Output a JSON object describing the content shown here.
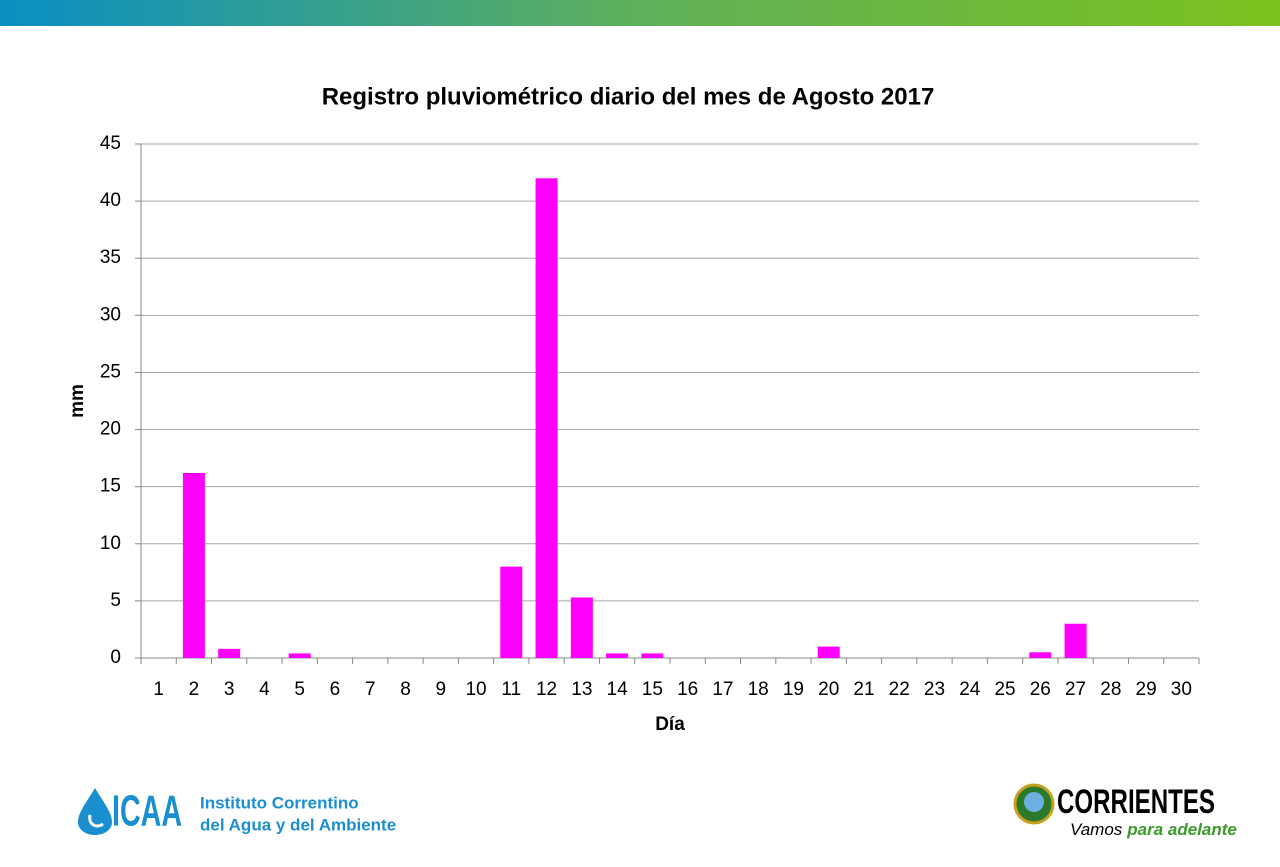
{
  "chart_data": {
    "type": "bar",
    "title": "Registro pluviométrico diario del mes de Agosto 2017",
    "x_label": "Día",
    "y_label": "mm",
    "categories": [
      "1",
      "2",
      "3",
      "4",
      "5",
      "6",
      "7",
      "8",
      "9",
      "10",
      "11",
      "12",
      "13",
      "14",
      "15",
      "16",
      "17",
      "18",
      "19",
      "20",
      "21",
      "22",
      "23",
      "24",
      "25",
      "26",
      "27",
      "28",
      "29",
      "30"
    ],
    "values": [
      0,
      16.2,
      0.8,
      0,
      0.4,
      0,
      0,
      0,
      0,
      0,
      8,
      42,
      5.3,
      0.4,
      0.4,
      0,
      0,
      0,
      0,
      1,
      0,
      0,
      0,
      0,
      0,
      0.5,
      3,
      0,
      0,
      0
    ],
    "color": "#ff00ff",
    "ylim": [
      0,
      45
    ],
    "yticks": [
      0,
      5,
      10,
      15,
      20,
      25,
      30,
      35,
      40,
      45
    ],
    "grid": true
  },
  "logos": {
    "left": {
      "name": "ICAA",
      "lines": [
        "Instituto Correntino",
        "del Agua y del Ambiente"
      ]
    },
    "right": {
      "name": "CORRIENTES",
      "slogan": [
        "Vamos",
        "para adelante"
      ]
    }
  }
}
